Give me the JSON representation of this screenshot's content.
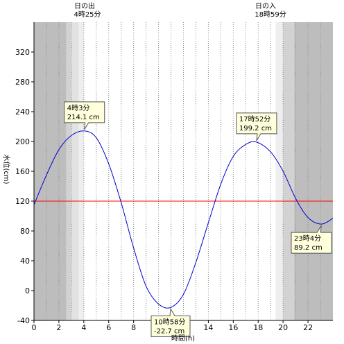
{
  "chart_data": {
    "type": "line",
    "title": "",
    "xlabel": "時間(h)",
    "ylabel": "水位(cm)",
    "xlim": [
      0,
      24
    ],
    "ylim": [
      -40,
      360
    ],
    "x_ticks": [
      0,
      2,
      4,
      6,
      8,
      10,
      12,
      14,
      16,
      18,
      20,
      22
    ],
    "y_ticks": [
      -40,
      0,
      40,
      80,
      120,
      160,
      200,
      240,
      280,
      320
    ],
    "grid": "vertical-dotted-every-hour",
    "reference_line": {
      "value": 120,
      "color": "#ff0000"
    },
    "line_color": "#0000cc",
    "series": [
      {
        "name": "",
        "x": [
          0,
          1,
          2,
          3,
          4.05,
          5,
          6,
          7,
          8,
          9,
          10,
          10.97,
          12,
          13,
          14,
          15,
          16,
          17,
          17.87,
          19,
          20,
          21,
          22,
          23.07,
          24
        ],
        "y": [
          115,
          155,
          189,
          208,
          214.1,
          205,
          170,
          118,
          57,
          6,
          -18,
          -22.7,
          -5,
          38,
          91,
          143,
          180,
          196,
          199.2,
          186,
          160,
          124,
          98,
          89.2,
          97
        ]
      }
    ],
    "sunrise": {
      "label": "日の出",
      "time": "4時25分",
      "hour": 4.42
    },
    "sunset": {
      "label": "日の入",
      "time": "18時59分",
      "hour": 18.98
    },
    "shading": [
      {
        "from": 0,
        "to": 2.6,
        "level": "night",
        "color": "#bdbdbd"
      },
      {
        "from": 2.6,
        "to": 3.0,
        "level": "twilight-dark",
        "color": "#d2d2d2"
      },
      {
        "from": 3.0,
        "to": 3.6,
        "level": "twilight",
        "color": "#e2e2e2"
      },
      {
        "from": 3.6,
        "to": 4.0,
        "level": "twilight-light",
        "color": "#eeeeee"
      },
      {
        "from": 19.4,
        "to": 20.0,
        "level": "twilight-light",
        "color": "#eeeeee"
      },
      {
        "from": 20.0,
        "to": 20.9,
        "level": "twilight",
        "color": "#d2d2d2"
      },
      {
        "from": 20.9,
        "to": 24,
        "level": "night",
        "color": "#bdbdbd"
      }
    ],
    "annotations": [
      {
        "name": "high-tide-1",
        "time": "4時3分",
        "value": "214.1 cm",
        "x": 4.05,
        "y": 214.1,
        "pointer": "down"
      },
      {
        "name": "low-tide-1",
        "time": "10時58分",
        "value": "-22.7 cm",
        "x": 10.97,
        "y": -22.7,
        "pointer": "up"
      },
      {
        "name": "high-tide-2",
        "time": "17時52分",
        "value": "199.2 cm",
        "x": 17.87,
        "y": 199.2,
        "pointer": "down"
      },
      {
        "name": "low-tide-2",
        "time": "23時4分",
        "value": "89.2 cm",
        "x": 23.07,
        "y": 89.2,
        "pointer": "up"
      }
    ]
  }
}
